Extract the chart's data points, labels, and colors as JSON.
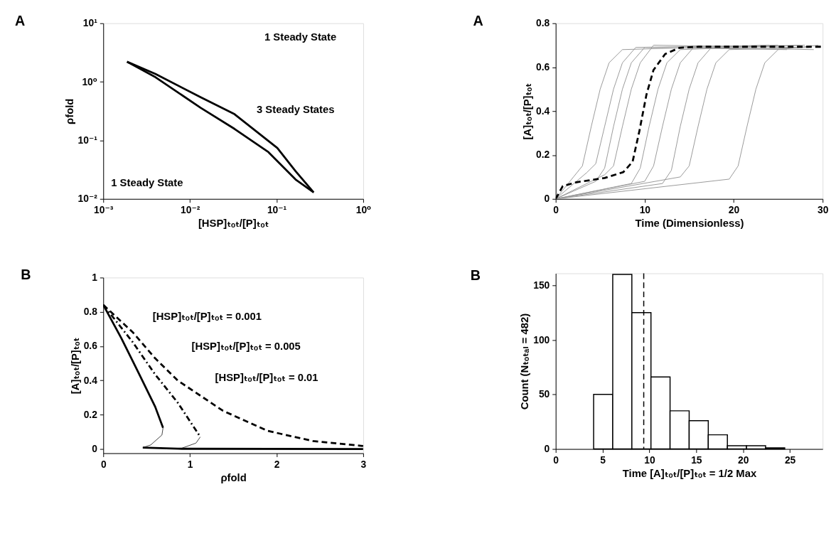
{
  "chart_data": [
    {
      "type": "line",
      "title": "A",
      "xlabel": "[HSP]ₜₒₜ/[P]ₜₒₜ",
      "ylabel": "ρfold",
      "log": "xy",
      "grid": false,
      "xlim": [
        0.001,
        1
      ],
      "ylim": [
        0.01,
        10
      ],
      "xticks": [
        {
          "value": 0.001,
          "label": "10⁻³"
        },
        {
          "value": 0.01,
          "label": "10⁻²"
        },
        {
          "value": 0.1,
          "label": "10⁻¹"
        },
        {
          "value": 1,
          "label": "10⁰"
        }
      ],
      "yticks": [
        {
          "value": 0.01,
          "label": "10⁻²"
        },
        {
          "value": 0.1,
          "label": "10⁻¹"
        },
        {
          "value": 1,
          "label": "10⁰"
        },
        {
          "value": 10,
          "label": "10¹"
        }
      ],
      "series": [
        {
          "color": "#000000",
          "line_style": "solid",
          "x": [
            0.00188,
            0.004,
            0.0133,
            0.0327,
            0.102,
            0.166,
            0.268
          ],
          "values": [
            2.2,
            1.36,
            0.545,
            0.28,
            0.074,
            0.0297,
            0.0129
          ]
        },
        {
          "color": "#000000",
          "line_style": "solid",
          "x": [
            0.00188,
            0.004,
            0.0133,
            0.0327,
            0.0805,
            0.166,
            0.268
          ],
          "values": [
            2.2,
            1.2,
            0.36,
            0.157,
            0.063,
            0.0214,
            0.0129
          ]
        }
      ],
      "annotations": [
        "1 Steady State",
        "3 Steady States",
        "1 Steady State"
      ]
    },
    {
      "type": "line",
      "title": "B",
      "xlabel": "ρfold",
      "ylabel": "[A]ₜₒₜ/[P]ₜₒₜ",
      "grid": false,
      "xlim": [
        0,
        3
      ],
      "ylim": [
        -0.024,
        1
      ],
      "xticks": [
        0,
        1,
        2,
        3
      ],
      "yticks": [
        0,
        0.2,
        0.4,
        0.6,
        0.8,
        1
      ],
      "series": [
        {
          "color": "#000000",
          "line_style": "dashed",
          "x": [
            0,
            0.339,
            0.599,
            0.859,
            1.38,
            1.9,
            2.42,
            3
          ],
          "values": [
            0.841,
            0.682,
            0.529,
            0.4,
            0.224,
            0.106,
            0.047,
            0.018
          ]
        },
        {
          "color": "#000000",
          "line_style": "dashdot",
          "x": [
            0,
            0.339,
            0.599,
            0.859,
            1.12
          ],
          "values": [
            0.841,
            0.624,
            0.435,
            0.271,
            0.071
          ]
        },
        {
          "color": "#444444",
          "line_style": "solid",
          "x": [
            1.12,
            1.07,
            0.91
          ],
          "values": [
            0.071,
            0.035,
            0.006
          ]
        },
        {
          "color": "#000000",
          "line_style": "solid",
          "x": [
            0,
            0.208,
            0.417,
            0.599,
            0.69
          ],
          "values": [
            0.841,
            0.647,
            0.435,
            0.247,
            0.124
          ]
        },
        {
          "color": "#444444",
          "line_style": "solid",
          "x": [
            0.69,
            0.677,
            0.547,
            0.456
          ],
          "values": [
            0.124,
            0.082,
            0.024,
            0.009
          ]
        },
        {
          "color": "#000000",
          "line_style": "solid",
          "x": [
            0.456,
            0.86,
            3
          ],
          "values": [
            0.009,
            0.002,
            0
          ]
        }
      ],
      "annotations": [
        "[HSP]ₜₒₜ/[P]ₜₒₜ = 0.001",
        "[HSP]ₜₒₜ/[P]ₜₒₜ = 0.005",
        "[HSP]ₜₒₜ/[P]ₜₒₜ = 0.01"
      ]
    },
    {
      "type": "line",
      "title": "A",
      "xlabel": "Time (Dimensionless)",
      "ylabel": "[A]ₜₒₜ/[P]ₜₒₜ",
      "grid": false,
      "xlim": [
        0,
        30
      ],
      "ylim": [
        0,
        0.8
      ],
      "xticks": [
        0,
        10,
        20,
        30
      ],
      "yticks": [
        0,
        0.2,
        0.4,
        0.6,
        0.8
      ],
      "series": [
        {
          "color": "#999999",
          "line_style": "solid",
          "x": [
            0,
            2,
            3,
            4,
            5,
            6,
            7.5,
            24
          ],
          "values": [
            0,
            0.1,
            0.15,
            0.33,
            0.5,
            0.62,
            0.68,
            0.7
          ]
        },
        {
          "color": "#999999",
          "line_style": "solid",
          "x": [
            0,
            3.5,
            4.5,
            5.5,
            6.5,
            7.5,
            9,
            25
          ],
          "values": [
            0,
            0.12,
            0.16,
            0.33,
            0.5,
            0.62,
            0.69,
            0.7
          ]
        },
        {
          "color": "#999999",
          "line_style": "solid",
          "x": [
            0,
            4.5,
            5.5,
            6.5,
            7.5,
            8.5,
            10,
            26
          ],
          "values": [
            0,
            0.08,
            0.14,
            0.33,
            0.5,
            0.62,
            0.69,
            0.68
          ]
        },
        {
          "color": "#999999",
          "line_style": "solid",
          "x": [
            0,
            5.5,
            6.5,
            7.5,
            8.5,
            9.5,
            11,
            27
          ],
          "values": [
            0,
            0.11,
            0.15,
            0.33,
            0.5,
            0.62,
            0.7,
            0.69
          ]
        },
        {
          "color": "#999999",
          "line_style": "solid",
          "x": [
            0,
            8.5,
            9.5,
            10.5,
            11.5,
            12.5,
            14,
            28
          ],
          "values": [
            0,
            0.07,
            0.14,
            0.33,
            0.5,
            0.62,
            0.68,
            0.7
          ]
        },
        {
          "color": "#999999",
          "line_style": "solid",
          "x": [
            0,
            10,
            11,
            12,
            13,
            14,
            15.5,
            29
          ],
          "values": [
            0,
            0.08,
            0.15,
            0.33,
            0.5,
            0.62,
            0.69,
            0.68
          ]
        },
        {
          "color": "#999999",
          "line_style": "solid",
          "x": [
            0,
            12,
            13,
            14,
            15,
            16,
            17.5,
            27.5
          ],
          "values": [
            0,
            0.07,
            0.13,
            0.33,
            0.5,
            0.62,
            0.69,
            0.7
          ]
        },
        {
          "color": "#999999",
          "line_style": "solid",
          "x": [
            0,
            14,
            15,
            16,
            17,
            18,
            19.5,
            28.5
          ],
          "values": [
            0,
            0.1,
            0.15,
            0.33,
            0.5,
            0.62,
            0.68,
            0.69
          ]
        },
        {
          "color": "#999999",
          "line_style": "solid",
          "x": [
            0,
            19.5,
            20.5,
            21.5,
            22.5,
            23.5,
            25,
            29.5
          ],
          "values": [
            0,
            0.09,
            0.15,
            0.33,
            0.5,
            0.62,
            0.68,
            0.7
          ]
        },
        {
          "color": "#000000",
          "line_style": "dashed",
          "x": [
            0,
            0.79,
            2.36,
            5.5,
            7.6,
            8.64,
            9.4,
            10.2,
            10.99,
            12.3,
            13.9,
            15.97,
            30
          ],
          "values": [
            0,
            0.058,
            0.076,
            0.095,
            0.122,
            0.169,
            0.308,
            0.475,
            0.587,
            0.66,
            0.688,
            0.693,
            0.693
          ]
        }
      ]
    },
    {
      "type": "histogram",
      "title": "B",
      "xlabel": "Time [A]ₜₒₜ/[P]ₜₒₜ = 1/2 Max",
      "ylabel": "Count (Nₜₒₜₐₗ = 482)",
      "grid": false,
      "xlim": [
        0,
        28.5
      ],
      "ylim": [
        0,
        161
      ],
      "xticks": [
        0,
        5,
        10,
        15,
        20,
        25
      ],
      "yticks": [
        0,
        50,
        100,
        150
      ],
      "bins": [
        4.05,
        6.09,
        8.13,
        10.17,
        12.21,
        14.25,
        16.29,
        18.33,
        20.37,
        22.41,
        24.45
      ],
      "values": [
        50,
        160,
        125,
        66,
        35,
        26,
        13,
        3,
        3,
        1
      ],
      "color": "#ffffff",
      "ref_lines": [
        {
          "axis": "x",
          "value": 9.4,
          "line_style": "dashed",
          "color": "#000000"
        }
      ]
    }
  ]
}
